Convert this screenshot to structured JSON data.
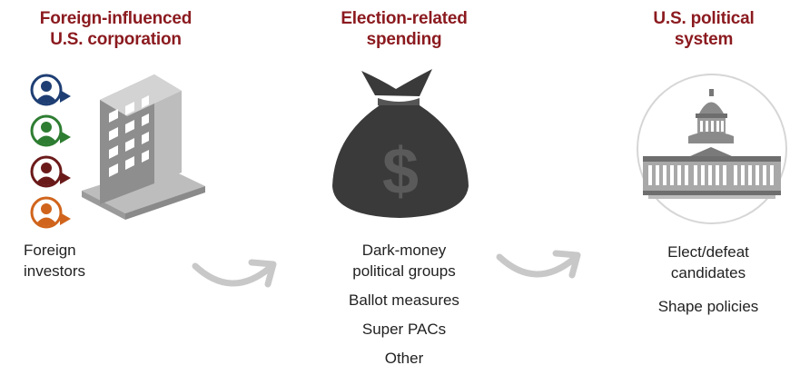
{
  "columns": [
    {
      "title_line1": "Foreign-influenced",
      "title_line2": "U.S. corporation",
      "caption_line1": "Foreign",
      "caption_line2": "investors"
    },
    {
      "title_line1": "Election-related",
      "title_line2": "spending",
      "items": [
        {
          "line1": "Dark-money",
          "line2": "political groups"
        },
        {
          "line1": "Ballot measures"
        },
        {
          "line1": "Super PACs"
        },
        {
          "line1": "Other"
        }
      ]
    },
    {
      "title_line1": "U.S. political",
      "title_line2": "system",
      "items": [
        {
          "line1": "Elect/defeat",
          "line2": "candidates"
        },
        {
          "line1": "Shape policies"
        }
      ]
    }
  ],
  "colors": {
    "title": "#8b1a1f",
    "investor_blue": "#1f3f74",
    "investor_green": "#2e7d32",
    "investor_maroon": "#6b1a1a",
    "investor_orange": "#d0641c",
    "building": "#a9a9a9",
    "money_bag": "#3a3a3a",
    "arrow": "#c8c8c8"
  },
  "icons": {
    "investors": "person-icon",
    "corporation": "building-icon",
    "spending": "money-bag-icon",
    "political_system": "capitol-icon",
    "flow": "curved-arrow-icon"
  }
}
